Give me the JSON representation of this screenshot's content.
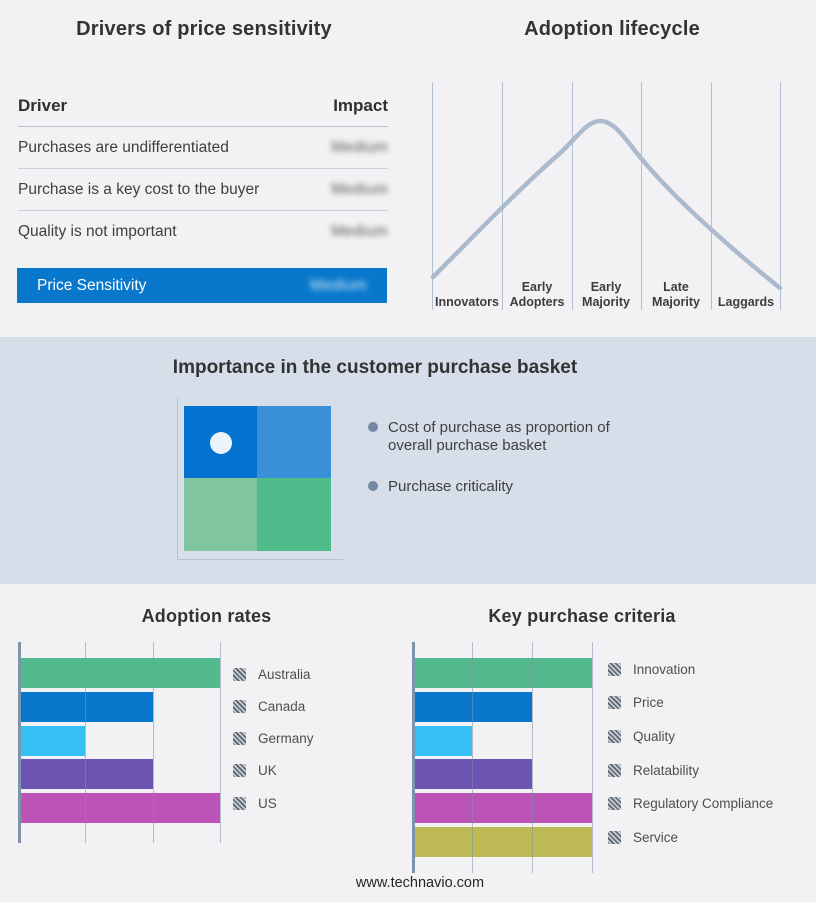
{
  "colors": {
    "page_background": "#f2f2f4",
    "band_background": "#d6dee9",
    "highlight_blue": "#0878cc",
    "curve": "#abbacd",
    "bullet": "#7388a3",
    "quadrant": {
      "top_left": "#0473cf",
      "top_right": "#3990d6",
      "bottom_left": "#7fc69e",
      "bottom_right": "#50bc8c"
    }
  },
  "drivers_table": {
    "title": "Drivers of price sensitivity",
    "columns": {
      "driver": "Driver",
      "impact": "Impact"
    },
    "rows": [
      {
        "driver": "Purchases are undifferentiated",
        "impact": "Medium"
      },
      {
        "driver": "Purchase is a key cost to the buyer",
        "impact": "Medium"
      },
      {
        "driver": "Quality is not important",
        "impact": "Medium"
      }
    ],
    "highlight_row": {
      "driver": "Price Sensitivity",
      "impact": "Medium"
    },
    "note": "impact values appear blurred/obscured in the image"
  },
  "purchase_basket": {
    "title": "Importance in the customer purchase basket",
    "bullets": [
      "Cost of purchase as proportion of overall purchase basket",
      "Purchase criticality"
    ]
  },
  "footer": {
    "website": "www.technavio.com"
  },
  "chart_data": [
    {
      "type": "bar",
      "title": "Adoption rates",
      "orientation": "horizontal",
      "categories": [
        "Australia",
        "Canada",
        "Germany",
        "UK",
        "US"
      ],
      "values": [
        3,
        2,
        1,
        2,
        3
      ],
      "xlim": [
        0,
        3
      ],
      "value_units": "relative gridline units (no numeric axis labels shown)",
      "colors": [
        "#52ba8c",
        "#0877cc",
        "#35c1f5",
        "#6b54b2",
        "#bc53b6"
      ],
      "grid": true,
      "legend_position": "right",
      "legend_swatch_style": "gray diagonal hatch"
    },
    {
      "type": "bar",
      "title": "Key purchase criteria",
      "orientation": "horizontal",
      "categories": [
        "Innovation",
        "Price",
        "Quality",
        "Relatability",
        "Regulatory Compliance",
        "Service"
      ],
      "values": [
        3,
        2,
        1,
        2,
        3,
        3
      ],
      "xlim": [
        0,
        3
      ],
      "value_units": "relative gridline units (no numeric axis labels shown)",
      "colors": [
        "#52ba8c",
        "#0877cc",
        "#35c1f5",
        "#6b54b2",
        "#bc53b6",
        "#bdba55"
      ],
      "grid": true,
      "legend_position": "right",
      "legend_swatch_style": "gray diagonal hatch"
    },
    {
      "type": "line",
      "title": "Adoption lifecycle",
      "x_categories": [
        "Innovators",
        "Early Adopters",
        "Early Majority",
        "Late Majority",
        "Laggards"
      ],
      "curve": "bell",
      "peak_at": "Early Majority",
      "points_normalized": [
        [
          0.0,
          0.05
        ],
        [
          0.2,
          0.4
        ],
        [
          0.35,
          0.75
        ],
        [
          0.48,
          1.0
        ],
        [
          0.62,
          0.78
        ],
        [
          0.8,
          0.4
        ],
        [
          1.0,
          0.02
        ]
      ],
      "grid": "vertical stage dividers",
      "line_color": "#abbacd"
    }
  ]
}
